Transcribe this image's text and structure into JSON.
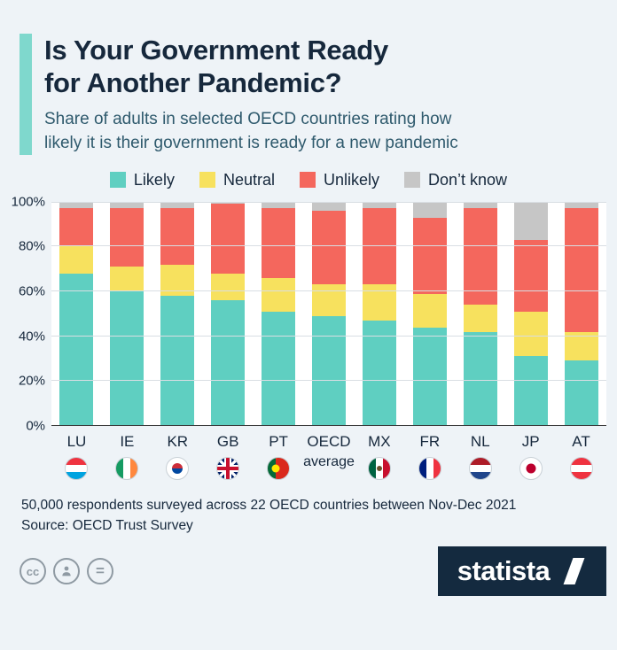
{
  "header": {
    "title": "Is Your Government Ready\nfor Another Pandemic?",
    "subtitle": "Share of adults in selected OECD countries rating how\nlikely it is their government is ready for a new pandemic"
  },
  "legend": [
    {
      "label": "Likely",
      "color": "#5fcfc1"
    },
    {
      "label": "Neutral",
      "color": "#f7e15e"
    },
    {
      "label": "Unlikely",
      "color": "#f4675d"
    },
    {
      "label": "Don’t know",
      "color": "#c6c6c6"
    }
  ],
  "chart_data": {
    "type": "bar",
    "stacked": true,
    "percent": true,
    "title": "Is Your Government Ready for Another Pandemic?",
    "xlabel": "",
    "ylabel": "",
    "ylim": [
      0,
      100
    ],
    "grid": true,
    "legend_position": "top",
    "categories": [
      "LU",
      "IE",
      "KR",
      "GB",
      "PT",
      "OECD average",
      "MX",
      "FR",
      "NL",
      "JP",
      "AT"
    ],
    "yticks": [
      {
        "label": "0%",
        "value": 0
      },
      {
        "label": "20%",
        "value": 20
      },
      {
        "label": "40%",
        "value": 40
      },
      {
        "label": "60%",
        "value": 60
      },
      {
        "label": "80%",
        "value": 80
      },
      {
        "label": "100%",
        "value": 100
      }
    ],
    "series": [
      {
        "name": "Likely",
        "color": "#5fcfc1",
        "values": [
          68,
          60,
          58,
          56,
          51,
          49,
          47,
          44,
          42,
          31,
          29
        ]
      },
      {
        "name": "Neutral",
        "color": "#f7e15e",
        "values": [
          12,
          11,
          14,
          12,
          15,
          14,
          16,
          15,
          12,
          20,
          13
        ]
      },
      {
        "name": "Unlikely",
        "color": "#f4675d",
        "values": [
          17,
          26,
          25,
          31,
          31,
          33,
          34,
          34,
          43,
          32,
          55
        ]
      },
      {
        "name": "Don’t know",
        "color": "#c6c6c6",
        "values": [
          3,
          3,
          3,
          1,
          3,
          4,
          3,
          7,
          3,
          17,
          3
        ]
      }
    ]
  },
  "x_axis": {
    "items": [
      {
        "label": "LU",
        "sub": "",
        "flag": "lu"
      },
      {
        "label": "IE",
        "sub": "",
        "flag": "ie"
      },
      {
        "label": "KR",
        "sub": "",
        "flag": "kr"
      },
      {
        "label": "GB",
        "sub": "",
        "flag": "gb"
      },
      {
        "label": "PT",
        "sub": "",
        "flag": "pt"
      },
      {
        "label": "OECD",
        "sub": "average",
        "flag": ""
      },
      {
        "label": "MX",
        "sub": "",
        "flag": "mx"
      },
      {
        "label": "FR",
        "sub": "",
        "flag": "fr"
      },
      {
        "label": "NL",
        "sub": "",
        "flag": "nl"
      },
      {
        "label": "JP",
        "sub": "",
        "flag": "jp"
      },
      {
        "label": "AT",
        "sub": "",
        "flag": "at"
      }
    ]
  },
  "footer": {
    "text": "50,000 respondents surveyed across 22 OECD countries between Nov-Dec 2021\nSource: OECD Trust Survey"
  },
  "branding": {
    "logo_text": "statista",
    "cc_label": "cc",
    "equal_label": "="
  },
  "colors": {
    "background": "#eef3f7",
    "accent": "#7fd8cd",
    "title_navy": "#16283c",
    "subtitle": "#2f5a6d",
    "brand_navy": "#142a3f"
  }
}
